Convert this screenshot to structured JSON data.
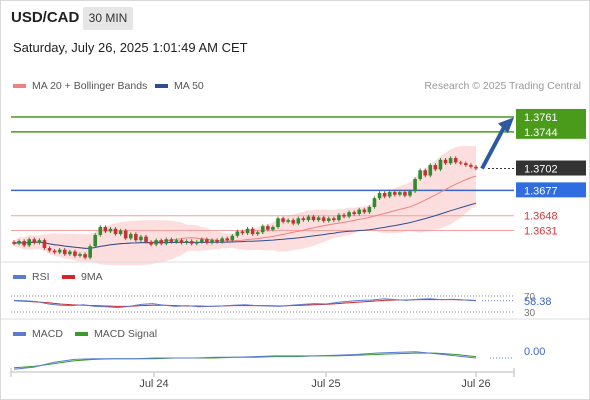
{
  "header": {
    "symbol": "USD/CAD",
    "timeframe": "30 MIN",
    "datetime": "Saturday, July 26, 2025 1:01:49 AM CET"
  },
  "legend": {
    "ma20": "MA 20 + Bollinger Bands",
    "ma50": "MA 50",
    "credit": "Research © 2025 Trading Central"
  },
  "colors": {
    "resistance": "#4a9a1b",
    "support": "#d03a3a",
    "pivot": "#3a66c8",
    "up": "#2e8b2e",
    "down": "#c33333",
    "ma20": "#f08080",
    "ma50": "#2b4f8f",
    "bands": "#fbd8d8",
    "rsi": "#5b7bd5",
    "rsi_ma": "#d62728",
    "macd": "#5b7bd5",
    "macd_signal": "#3c9a2a"
  },
  "chart_data": [
    {
      "type": "candlestick",
      "ylim": [
        1.3595,
        1.3785
      ],
      "x_ticks": [
        "Jul 24",
        "Jul 25",
        "Jul 26"
      ],
      "last_price": {
        "label": "1.3702",
        "value": 1.3702
      },
      "levels": [
        {
          "label": "1.3761",
          "value": 1.3761,
          "kind": "resistance"
        },
        {
          "label": "1.3744",
          "value": 1.3744,
          "kind": "resistance"
        },
        {
          "label": "1.3677",
          "value": 1.3677,
          "kind": "pivot"
        },
        {
          "label": "1.3648",
          "value": 1.3648,
          "kind": "support"
        },
        {
          "label": "1.3631",
          "value": 1.3631,
          "kind": "support"
        }
      ],
      "target_arrow": {
        "from": 1.3702,
        "to": 1.3756
      },
      "candles": [
        [
          1.3618,
          1.3616
        ],
        [
          1.3616,
          1.3619
        ],
        [
          1.3619,
          1.3614
        ],
        [
          1.3614,
          1.3621
        ],
        [
          1.3621,
          1.3617
        ],
        [
          1.3617,
          1.362
        ],
        [
          1.362,
          1.3611
        ],
        [
          1.3611,
          1.3608
        ],
        [
          1.3608,
          1.3606
        ],
        [
          1.3606,
          1.3609
        ],
        [
          1.3609,
          1.3604
        ],
        [
          1.3604,
          1.3607
        ],
        [
          1.3607,
          1.3602
        ],
        [
          1.3602,
          1.3604
        ],
        [
          1.3604,
          1.36
        ],
        [
          1.36,
          1.3613
        ],
        [
          1.3613,
          1.3626
        ],
        [
          1.3626,
          1.3635
        ],
        [
          1.3635,
          1.363
        ],
        [
          1.363,
          1.3633
        ],
        [
          1.3633,
          1.3627
        ],
        [
          1.3627,
          1.3631
        ],
        [
          1.3631,
          1.3622
        ],
        [
          1.3622,
          1.3627
        ],
        [
          1.3627,
          1.362
        ],
        [
          1.362,
          1.3624
        ],
        [
          1.3624,
          1.3618
        ],
        [
          1.3618,
          1.3615
        ],
        [
          1.3615,
          1.362
        ],
        [
          1.362,
          1.3616
        ],
        [
          1.3616,
          1.3621
        ],
        [
          1.3621,
          1.3618
        ],
        [
          1.3618,
          1.362
        ],
        [
          1.362,
          1.3617
        ],
        [
          1.3617,
          1.3619
        ],
        [
          1.3619,
          1.3616
        ],
        [
          1.3616,
          1.3618
        ],
        [
          1.3618,
          1.3621
        ],
        [
          1.3621,
          1.3617
        ],
        [
          1.3617,
          1.362
        ],
        [
          1.362,
          1.3618
        ],
        [
          1.3618,
          1.3622
        ],
        [
          1.3622,
          1.362
        ],
        [
          1.362,
          1.3625
        ],
        [
          1.3625,
          1.363
        ],
        [
          1.363,
          1.3628
        ],
        [
          1.3628,
          1.3633
        ],
        [
          1.3633,
          1.3627
        ],
        [
          1.3627,
          1.3629
        ],
        [
          1.3629,
          1.3636
        ],
        [
          1.3636,
          1.3632
        ],
        [
          1.3632,
          1.3635
        ],
        [
          1.3635,
          1.3645
        ],
        [
          1.3645,
          1.3641
        ],
        [
          1.3641,
          1.3643
        ],
        [
          1.3643,
          1.3639
        ],
        [
          1.3639,
          1.3645
        ],
        [
          1.3645,
          1.3643
        ],
        [
          1.3643,
          1.3647
        ],
        [
          1.3647,
          1.3643
        ],
        [
          1.3643,
          1.3646
        ],
        [
          1.3646,
          1.3642
        ],
        [
          1.3642,
          1.3645
        ],
        [
          1.3645,
          1.3643
        ],
        [
          1.3643,
          1.3649
        ],
        [
          1.3649,
          1.3647
        ],
        [
          1.3647,
          1.3652
        ],
        [
          1.3652,
          1.365
        ],
        [
          1.365,
          1.3655
        ],
        [
          1.3655,
          1.3652
        ],
        [
          1.3652,
          1.3658
        ],
        [
          1.3658,
          1.3668
        ],
        [
          1.3668,
          1.3674
        ],
        [
          1.3674,
          1.367
        ],
        [
          1.367,
          1.3675
        ],
        [
          1.3675,
          1.3672
        ],
        [
          1.3672,
          1.3675
        ],
        [
          1.3675,
          1.3671
        ],
        [
          1.3671,
          1.3676
        ],
        [
          1.3676,
          1.369
        ],
        [
          1.369,
          1.37
        ],
        [
          1.37,
          1.3694
        ],
        [
          1.3694,
          1.3706
        ],
        [
          1.3706,
          1.3701
        ],
        [
          1.3701,
          1.3712
        ],
        [
          1.3712,
          1.3708
        ],
        [
          1.3708,
          1.3714
        ],
        [
          1.3714,
          1.3709
        ],
        [
          1.3709,
          1.3708
        ],
        [
          1.3708,
          1.3706
        ],
        [
          1.3706,
          1.3704
        ],
        [
          1.3704,
          1.3702
        ]
      ]
    },
    {
      "type": "line",
      "title": "RSI",
      "series": [
        {
          "name": "RSI"
        },
        {
          "name": "9MA"
        }
      ],
      "levels": [
        70,
        30
      ],
      "last": "58.38",
      "rsi_values": [
        59,
        58,
        56,
        50,
        47,
        46,
        48,
        44,
        43,
        41,
        44,
        49,
        51,
        47,
        44,
        46,
        43,
        44,
        45,
        47,
        48,
        46,
        45,
        44,
        47,
        49,
        51,
        50,
        54,
        57,
        59,
        60,
        63,
        61,
        59,
        62,
        63,
        61,
        62,
        60,
        58
      ],
      "ma_values": [
        58,
        57,
        55,
        53,
        50,
        48,
        47,
        46,
        45,
        44,
        44,
        46,
        47,
        47,
        46,
        45,
        45,
        44,
        45,
        46,
        46,
        46,
        46,
        45,
        46,
        47,
        48,
        49,
        51,
        53,
        55,
        57,
        59,
        60,
        60,
        61,
        61,
        61,
        61,
        60,
        59
      ]
    },
    {
      "type": "line",
      "title": "MACD",
      "series": [
        {
          "name": "MACD"
        },
        {
          "name": "MACD Signal"
        }
      ],
      "last": "0.00",
      "macd_values": [
        -1.6,
        -1.3,
        -0.6,
        -0.2,
        -0.1,
        -0.1,
        -0.1,
        0.0,
        0.0,
        0.0,
        0.1,
        0.1,
        0.2,
        0.3,
        0.3,
        0.3,
        0.4,
        0.5,
        0.7,
        0.8,
        0.9,
        0.6,
        0.3,
        0.0
      ],
      "signal_values": [
        -1.4,
        -1.2,
        -0.8,
        -0.4,
        -0.2,
        -0.1,
        -0.1,
        -0.1,
        0.0,
        0.0,
        0.0,
        0.1,
        0.1,
        0.2,
        0.2,
        0.3,
        0.3,
        0.4,
        0.5,
        0.6,
        0.7,
        0.7,
        0.5,
        0.2
      ]
    }
  ]
}
